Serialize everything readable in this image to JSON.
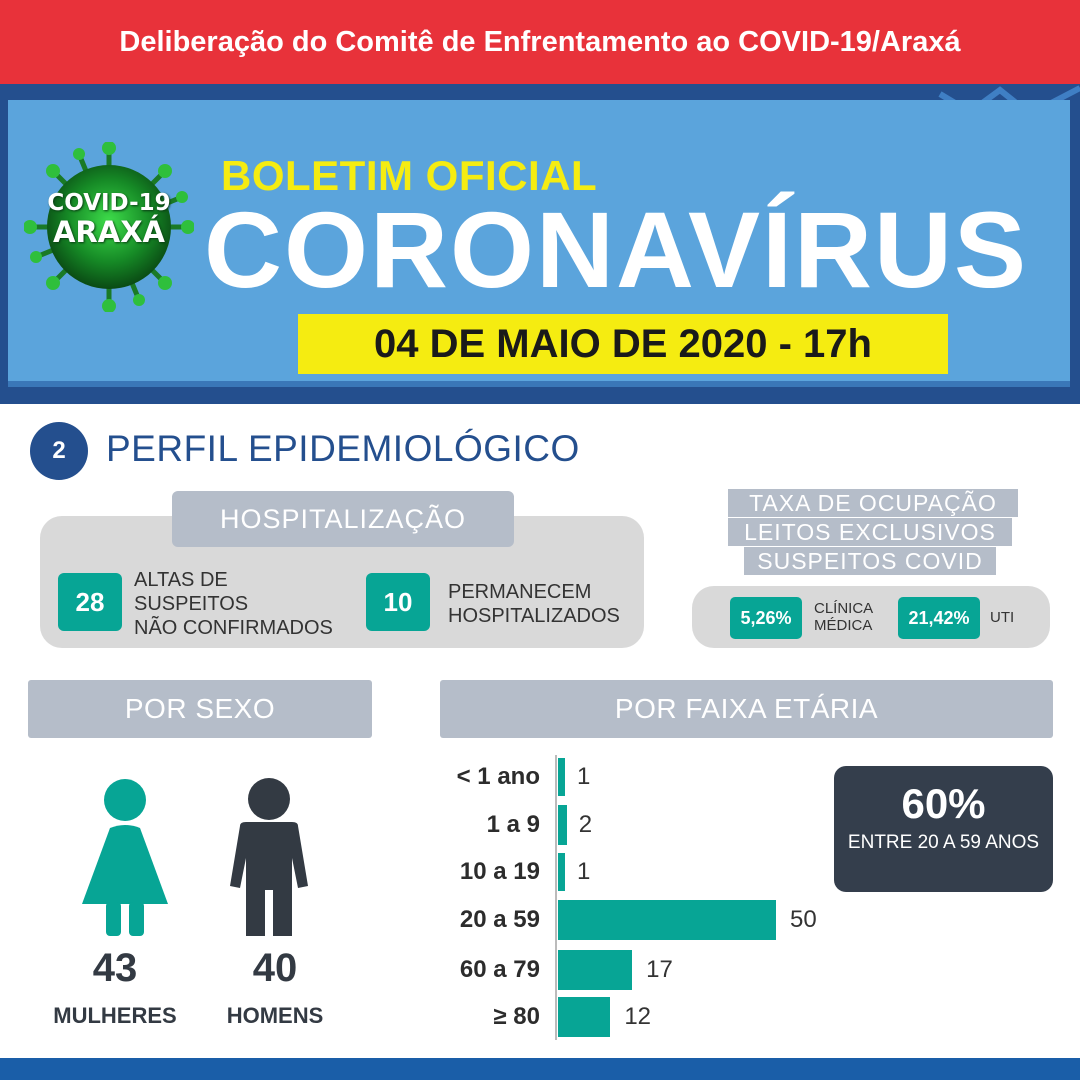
{
  "header": {
    "banner": "Deliberação do Comitê de Enfrentamento ao COVID-19/Araxá",
    "badge_line1": "COVID-19",
    "badge_line2": "ARAXÁ",
    "subtitle": "BOLETIM OFICIAL",
    "title": "CORONAVÍRUS",
    "date": "04 DE MAIO DE 2020 - 17h"
  },
  "section": {
    "number": "2",
    "title": "PERFIL EPIDEMIOLÓGICO"
  },
  "hospitalizacao": {
    "heading": "HOSPITALIZAÇÃO",
    "altas_value": "28",
    "altas_label": [
      "ALTAS DE",
      "SUSPEITOS",
      "NÃO CONFIRMADOS"
    ],
    "permanecem_value": "10",
    "permanecem_label": [
      "PERMANECEM",
      "HOSPITALIZADOS"
    ]
  },
  "taxa": {
    "heading_lines": [
      "TAXA DE OCUPAÇÃO",
      "LEITOS EXCLUSIVOS",
      "SUSPEITOS COVID"
    ],
    "clinica_value": "5,26%",
    "clinica_label": [
      "CLÍNICA",
      "MÉDICA"
    ],
    "uti_value": "21,42%",
    "uti_label": "UTI"
  },
  "sexo": {
    "heading": "POR SEXO",
    "female_count": "43",
    "female_label": "MULHERES",
    "male_count": "40",
    "male_label": "HOMENS"
  },
  "faixa": {
    "heading": "POR FAIXA ETÁRIA",
    "highlight_value": "60%",
    "highlight_text": "ENTRE 20 A 59 ANOS"
  },
  "colors": {
    "red": "#e8323a",
    "navy": "#244f8e",
    "sky": "#5ba4dc",
    "yellow": "#f5ec11",
    "teal": "#07a595",
    "grey": "#b5bdc9",
    "dark": "#343e4c"
  },
  "chart_data": {
    "type": "bar",
    "orientation": "horizontal",
    "categories": [
      "< 1 ano",
      "1 a 9",
      "10 a 19",
      "20 a 59",
      "60 a 79",
      "≥ 80"
    ],
    "values": [
      1,
      2,
      1,
      50,
      17,
      12
    ]
  }
}
